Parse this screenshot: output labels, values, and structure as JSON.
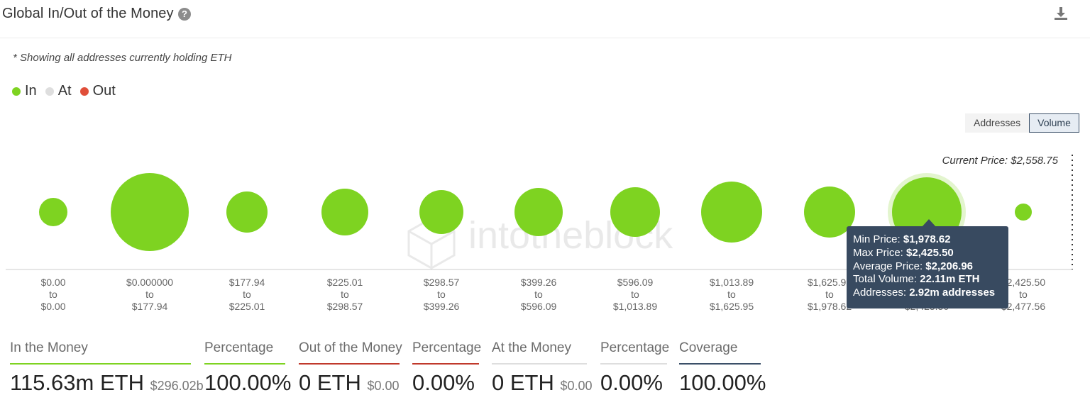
{
  "header": {
    "title": "Global In/Out of the Money",
    "help_icon": "help-circle-icon",
    "download_icon": "download-icon"
  },
  "note": "* Showing all addresses currently holding ETH",
  "legend": [
    {
      "label": "In",
      "color": "#7ed321"
    },
    {
      "label": "At",
      "color": "#dedede"
    },
    {
      "label": "Out",
      "color": "#e04e39"
    }
  ],
  "toggle": {
    "addresses_label": "Addresses",
    "volume_label": "Volume",
    "active": "Volume"
  },
  "watermark": "intotheblock",
  "chart_data": {
    "type": "bubble",
    "current_price_label": "Current Price: $2,558.75",
    "current_price": 2558.75,
    "buckets": [
      {
        "from": "$0.00",
        "to": "$0.00",
        "status": "In"
      },
      {
        "from": "$0.000000",
        "to": "$177.94",
        "status": "In"
      },
      {
        "from": "$177.94",
        "to": "$225.01",
        "status": "In"
      },
      {
        "from": "$225.01",
        "to": "$298.57",
        "status": "In"
      },
      {
        "from": "$298.57",
        "to": "$399.26",
        "status": "In"
      },
      {
        "from": "$399.26",
        "to": "$596.09",
        "status": "In"
      },
      {
        "from": "$596.09",
        "to": "$1,013.89",
        "status": "In"
      },
      {
        "from": "$1,013.89",
        "to": "$1,625.95",
        "status": "In"
      },
      {
        "from": "$1,625.95",
        "to": "$1,978.62",
        "status": "In"
      },
      {
        "from": "$1,978.62",
        "to": "$2,425.50",
        "status": "In",
        "volume_m": 22.11
      },
      {
        "from": "$2,425.50",
        "to": "$2,477.56",
        "status": "In"
      }
    ],
    "tooltip": {
      "min_price_label": "Min Price:",
      "min_price": "$1,978.62",
      "max_price_label": "Max Price:",
      "max_price": "$2,425.50",
      "avg_price_label": "Average Price:",
      "avg_price": "$2,206.96",
      "total_volume_label": "Total Volume:",
      "total_volume": "22.11m ETH",
      "addresses_label": "Addresses:",
      "addresses": "2.92m addresses"
    }
  },
  "stats": {
    "in_money": {
      "label": "In the Money",
      "value": "115.63m ETH",
      "sub": "$296.02b",
      "color": "#7ed321"
    },
    "in_pct": {
      "label": "Percentage",
      "value": "100.00%",
      "color": "#7ed321"
    },
    "out_money": {
      "label": "Out of the Money",
      "value": "0 ETH",
      "sub": "$0.00",
      "color": "#c0392b"
    },
    "out_pct": {
      "label": "Percentage",
      "value": "0.00%",
      "color": "#c0392b"
    },
    "at_money": {
      "label": "At the Money",
      "value": "0 ETH",
      "sub": "$0.00",
      "color": "#dedede"
    },
    "at_pct": {
      "label": "Percentage",
      "value": "0.00%",
      "color": "#dedede"
    },
    "coverage": {
      "label": "Coverage",
      "value": "100.00%",
      "color": "#3b5068"
    }
  }
}
